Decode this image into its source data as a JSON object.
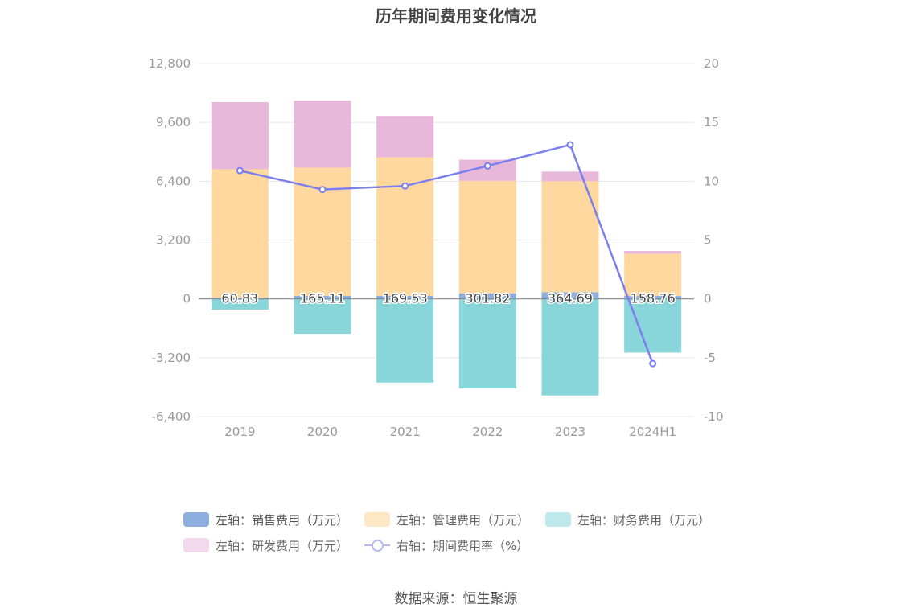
{
  "chart_data": {
    "type": "bar",
    "title": "历年期间费用变化情况",
    "categories": [
      "2019",
      "2020",
      "2021",
      "2022",
      "2023",
      "2024H1"
    ],
    "left_axis": {
      "ticks": [
        "12,800",
        "9,600",
        "6,400",
        "3,200",
        "0",
        "-3,200",
        "-6,400"
      ],
      "ylim": [
        -6400,
        12800
      ]
    },
    "right_axis": {
      "ticks": [
        "20",
        "15",
        "10",
        "5",
        "0",
        "-5",
        "-10"
      ],
      "ylim": [
        -10,
        20
      ]
    },
    "series": [
      {
        "name": "左轴：销售费用（万元）",
        "type": "bar",
        "stack": "pos",
        "color": "#8eaede",
        "values": [
          60.83,
          165.11,
          169.53,
          301.82,
          364.69,
          158.76
        ],
        "labels": [
          "60.83",
          "165.11",
          "169.53",
          "301.82",
          "364.69",
          "158.76"
        ]
      },
      {
        "name": "左轴：管理费用（万元）",
        "type": "bar",
        "stack": "pos",
        "color": "#fed89e",
        "values": [
          6990,
          6970,
          7530,
          6120,
          6040,
          2300
        ]
      },
      {
        "name": "左轴：财务费用（万元）",
        "type": "bar",
        "stack": "neg",
        "color": "#88d5da",
        "values": [
          -580,
          -1900,
          -4550,
          -4870,
          -5250,
          -2920
        ]
      },
      {
        "name": "左轴：研发费用（万元）",
        "type": "bar",
        "stack": "pos",
        "color": "#e7b8da",
        "values": [
          3650,
          3650,
          2250,
          1150,
          520,
          150
        ]
      },
      {
        "name": "右轴：期间费用率（%）",
        "type": "line",
        "axis": "right",
        "color": "#7b7fee",
        "values": [
          10.9,
          9.3,
          9.6,
          11.3,
          13.1,
          -5.5
        ]
      }
    ],
    "legend_position": "bottom",
    "grid": true
  },
  "source": "数据来源：恒生聚源"
}
